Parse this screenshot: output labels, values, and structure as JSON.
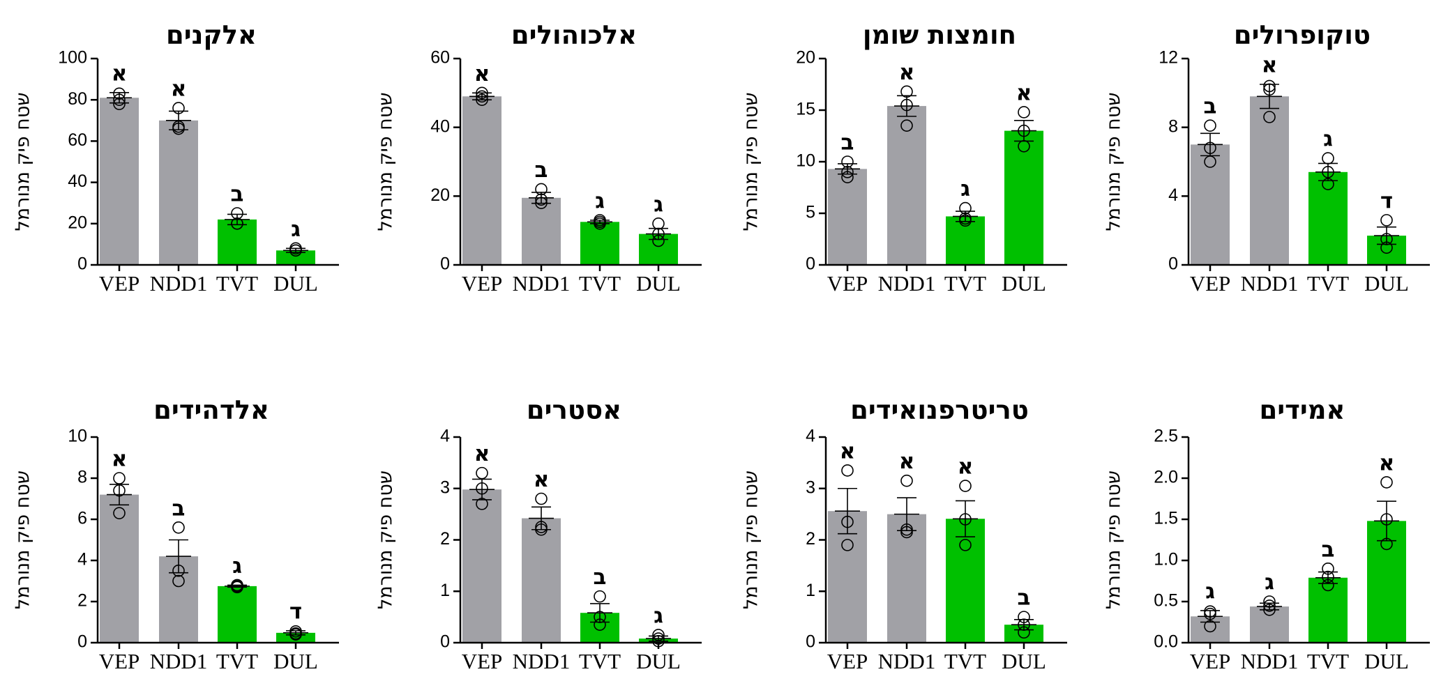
{
  "colors": {
    "control": "#a1a1a6",
    "treatment": "#00c000"
  },
  "chart_data": [
    {
      "type": "bar",
      "title": "אלקנים",
      "ylabel": "שטח פיק מנורמל",
      "categories": [
        "VEP",
        "NDD1",
        "TVT",
        "DUL"
      ],
      "bar_colors": [
        "control",
        "control",
        "treatment",
        "treatment"
      ],
      "ylim": [
        0,
        100
      ],
      "yticks": [
        0,
        20,
        40,
        60,
        80,
        100
      ],
      "ytick_labels": [
        "0",
        "20",
        "40",
        "60",
        "80",
        "100"
      ],
      "values": [
        81,
        70,
        22,
        7
      ],
      "errors": [
        2.5,
        4.5,
        2.5,
        1.0
      ],
      "points": [
        [
          83,
          80,
          78
        ],
        [
          76,
          67,
          66
        ],
        [
          25,
          20,
          20
        ],
        [
          8,
          7,
          7
        ]
      ],
      "significance": [
        "א",
        "א",
        "ב",
        "ג"
      ]
    },
    {
      "type": "bar",
      "title": "אלכוהולים",
      "ylabel": "שטח פיק מנורמל",
      "categories": [
        "VEP",
        "NDD1",
        "TVT",
        "DUL"
      ],
      "bar_colors": [
        "control",
        "control",
        "treatment",
        "treatment"
      ],
      "ylim": [
        0,
        60
      ],
      "yticks": [
        0,
        20,
        40,
        60
      ],
      "ytick_labels": [
        "0",
        "20",
        "40",
        "60"
      ],
      "values": [
        49,
        19.5,
        12.5,
        9
      ],
      "errors": [
        1.0,
        1.6,
        0.5,
        1.6
      ],
      "points": [
        [
          50,
          49,
          48
        ],
        [
          22,
          19,
          18
        ],
        [
          13,
          12.5,
          12
        ],
        [
          12,
          9,
          7
        ]
      ],
      "significance": [
        "א",
        "ב",
        "ג",
        "ג"
      ]
    },
    {
      "type": "bar",
      "title": "חומצות שומן",
      "ylabel": "שטח פיק מנורמל",
      "categories": [
        "VEP",
        "NDD1",
        "TVT",
        "DUL"
      ],
      "bar_colors": [
        "control",
        "control",
        "treatment",
        "treatment"
      ],
      "ylim": [
        0,
        20
      ],
      "yticks": [
        0,
        5,
        10,
        15,
        20
      ],
      "ytick_labels": [
        "0",
        "5",
        "10",
        "15",
        "20"
      ],
      "values": [
        9.3,
        15.4,
        4.7,
        13
      ],
      "errors": [
        0.5,
        1.0,
        0.5,
        1.0
      ],
      "points": [
        [
          10,
          9,
          8.5
        ],
        [
          16.8,
          15.5,
          13.5
        ],
        [
          5.5,
          4.5,
          4.3
        ],
        [
          14.8,
          13,
          11.5
        ]
      ],
      "significance": [
        "ב",
        "א",
        "ג",
        "א"
      ]
    },
    {
      "type": "bar",
      "title": "טוקופרולים",
      "ylabel": "שטח פיק מנורמל",
      "categories": [
        "VEP",
        "NDD1",
        "TVT",
        "DUL"
      ],
      "bar_colors": [
        "control",
        "control",
        "treatment",
        "treatment"
      ],
      "ylim": [
        0,
        12
      ],
      "yticks": [
        0,
        4,
        8,
        12
      ],
      "ytick_labels": [
        "0",
        "4",
        "8",
        "12"
      ],
      "values": [
        7,
        9.8,
        5.4,
        1.7
      ],
      "errors": [
        0.65,
        0.7,
        0.5,
        0.5
      ],
      "points": [
        [
          8.1,
          6.8,
          6
        ],
        [
          10.4,
          10.2,
          8.6
        ],
        [
          6.2,
          5.4,
          4.7
        ],
        [
          2.6,
          1.5,
          1.0
        ]
      ],
      "significance": [
        "ב",
        "א",
        "ג",
        "ד"
      ]
    },
    {
      "type": "bar",
      "title": "אלדהידים",
      "ylabel": "שטח פיק מנורמל",
      "categories": [
        "VEP",
        "NDD1",
        "TVT",
        "DUL"
      ],
      "bar_colors": [
        "control",
        "control",
        "treatment",
        "treatment"
      ],
      "ylim": [
        0,
        10
      ],
      "yticks": [
        0,
        2,
        4,
        6,
        8,
        10
      ],
      "ytick_labels": [
        "0",
        "2",
        "4",
        "6",
        "8",
        "10"
      ],
      "values": [
        7.2,
        4.2,
        2.75,
        0.48
      ],
      "errors": [
        0.5,
        0.8,
        0.05,
        0.1
      ],
      "points": [
        [
          8,
          7.4,
          6.3
        ],
        [
          5.6,
          3.5,
          3.0
        ],
        [
          2.8,
          2.75,
          2.7
        ],
        [
          0.55,
          0.45,
          0.4
        ]
      ],
      "significance": [
        "א",
        "ב",
        "ג",
        "ד"
      ]
    },
    {
      "type": "bar",
      "title": "אסטרים",
      "ylabel": "שטח פיק מנורמל",
      "categories": [
        "VEP",
        "NDD1",
        "TVT",
        "DUL"
      ],
      "bar_colors": [
        "control",
        "control",
        "treatment",
        "treatment"
      ],
      "ylim": [
        0,
        4
      ],
      "yticks": [
        0,
        1,
        2,
        3,
        4
      ],
      "ytick_labels": [
        "0",
        "1",
        "2",
        "3",
        "4"
      ],
      "values": [
        2.98,
        2.42,
        0.58,
        0.08
      ],
      "errors": [
        0.2,
        0.22,
        0.18,
        0.05
      ],
      "points": [
        [
          3.3,
          3.0,
          2.7
        ],
        [
          2.8,
          2.25,
          2.2
        ],
        [
          0.9,
          0.5,
          0.35
        ],
        [
          0.15,
          0.08,
          0.03
        ]
      ],
      "significance": [
        "א",
        "א",
        "ב",
        "ג"
      ]
    },
    {
      "type": "bar",
      "title": "טריטרפנואידים",
      "ylabel": "שטח פיק מנורמל",
      "categories": [
        "VEP",
        "NDD1",
        "TVT",
        "DUL"
      ],
      "bar_colors": [
        "control",
        "control",
        "treatment",
        "treatment"
      ],
      "ylim": [
        0,
        4
      ],
      "yticks": [
        0,
        1,
        2,
        3,
        4
      ],
      "ytick_labels": [
        "0",
        "1",
        "2",
        "3",
        "4"
      ],
      "values": [
        2.56,
        2.5,
        2.41,
        0.35
      ],
      "errors": [
        0.44,
        0.32,
        0.35,
        0.1
      ],
      "points": [
        [
          3.35,
          2.35,
          1.9
        ],
        [
          3.15,
          2.2,
          2.15
        ],
        [
          3.05,
          2.4,
          1.9
        ],
        [
          0.5,
          0.35,
          0.2
        ]
      ],
      "significance": [
        "א",
        "א",
        "א",
        "ב"
      ]
    },
    {
      "type": "bar",
      "title": "אמידים",
      "ylabel": "שטח פיק מנורמל",
      "categories": [
        "VEP",
        "NDD1",
        "TVT",
        "DUL"
      ],
      "bar_colors": [
        "control",
        "control",
        "treatment",
        "treatment"
      ],
      "ylim": [
        0,
        2.5
      ],
      "yticks": [
        0,
        0.5,
        1,
        1.5,
        2,
        2.5
      ],
      "ytick_labels": [
        "0.0",
        "0.5",
        "1.0",
        "1.5",
        "2.0",
        "2.5"
      ],
      "values": [
        0.32,
        0.44,
        0.79,
        1.48
      ],
      "errors": [
        0.07,
        0.04,
        0.07,
        0.24
      ],
      "points": [
        [
          0.38,
          0.35,
          0.2
        ],
        [
          0.5,
          0.45,
          0.4
        ],
        [
          0.9,
          0.8,
          0.7
        ],
        [
          1.95,
          1.5,
          1.2
        ]
      ],
      "significance": [
        "ג",
        "ג",
        "ב",
        "א"
      ]
    }
  ]
}
